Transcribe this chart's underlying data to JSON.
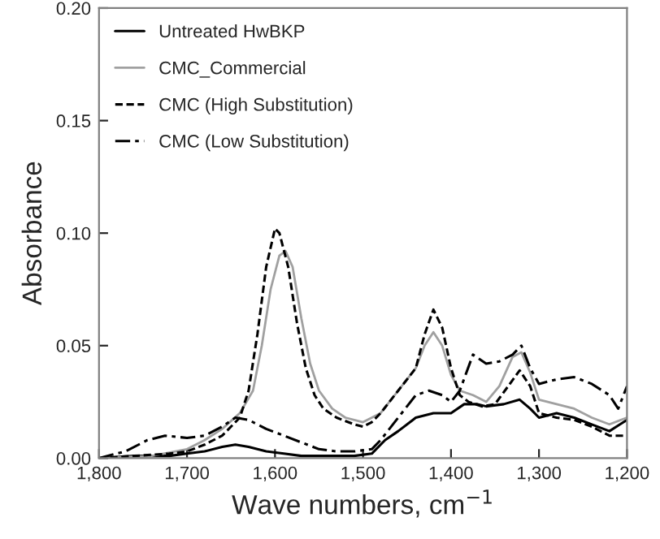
{
  "chart_data": {
    "type": "line",
    "xlabel": "Wave numbers, cm$^{−1}$",
    "ylabel": "Absorbance",
    "xlim": [
      1800,
      1200
    ],
    "ylim": [
      0,
      0.2
    ],
    "xticks": [
      {
        "value": 1800,
        "label": "1,800"
      },
      {
        "value": 1700,
        "label": "1,700"
      },
      {
        "value": 1600,
        "label": "1,600"
      },
      {
        "value": 1500,
        "label": "1,500"
      },
      {
        "value": 1400,
        "label": "1,400"
      },
      {
        "value": 1300,
        "label": "1,300"
      },
      {
        "value": 1200,
        "label": "1,200"
      }
    ],
    "yticks": [
      {
        "value": 0,
        "label": "0.00"
      },
      {
        "value": 0.05,
        "label": "0.05"
      },
      {
        "value": 0.1,
        "label": "0.10"
      },
      {
        "value": 0.15,
        "label": "0.15"
      },
      {
        "value": 0.2,
        "label": "0.20"
      }
    ],
    "grid": false,
    "legend": "top left",
    "marker": "none",
    "series": [
      {
        "name": "Untreated HwBKP",
        "color": "#000000",
        "line_style": "solid",
        "x": [
          1800,
          1760,
          1720,
          1700,
          1680,
          1660,
          1645,
          1630,
          1610,
          1590,
          1570,
          1550,
          1530,
          1510,
          1490,
          1475,
          1460,
          1440,
          1420,
          1400,
          1385,
          1370,
          1360,
          1340,
          1322,
          1310,
          1300,
          1280,
          1260,
          1240,
          1220,
          1200
        ],
        "values": [
          0.0,
          0.001,
          0.001,
          0.002,
          0.003,
          0.005,
          0.006,
          0.005,
          0.003,
          0.002,
          0.001,
          0.001,
          0.001,
          0.001,
          0.002,
          0.008,
          0.012,
          0.018,
          0.02,
          0.02,
          0.024,
          0.024,
          0.023,
          0.024,
          0.026,
          0.022,
          0.018,
          0.02,
          0.018,
          0.015,
          0.012,
          0.017
        ]
      },
      {
        "name": "CMC_Commercial",
        "color": "#a0a0a0",
        "line_style": "solid",
        "x": [
          1800,
          1740,
          1700,
          1680,
          1660,
          1640,
          1625,
          1615,
          1605,
          1595,
          1588,
          1580,
          1570,
          1560,
          1550,
          1535,
          1520,
          1500,
          1480,
          1460,
          1440,
          1430,
          1420,
          1410,
          1400,
          1390,
          1375,
          1360,
          1345,
          1330,
          1320,
          1310,
          1300,
          1280,
          1260,
          1240,
          1220,
          1200
        ],
        "values": [
          0.0,
          0.001,
          0.004,
          0.008,
          0.013,
          0.02,
          0.03,
          0.05,
          0.075,
          0.09,
          0.092,
          0.085,
          0.062,
          0.042,
          0.03,
          0.022,
          0.018,
          0.016,
          0.02,
          0.03,
          0.04,
          0.05,
          0.056,
          0.05,
          0.037,
          0.03,
          0.028,
          0.025,
          0.032,
          0.045,
          0.047,
          0.038,
          0.026,
          0.024,
          0.022,
          0.018,
          0.015,
          0.018
        ]
      },
      {
        "name": "CMC (High Substitution)",
        "color": "#000000",
        "line_style": "dashed",
        "x": [
          1800,
          1760,
          1720,
          1700,
          1680,
          1660,
          1640,
          1630,
          1620,
          1610,
          1600,
          1595,
          1585,
          1575,
          1565,
          1555,
          1545,
          1530,
          1510,
          1500,
          1490,
          1480,
          1460,
          1440,
          1430,
          1420,
          1410,
          1400,
          1390,
          1380,
          1365,
          1350,
          1335,
          1322,
          1310,
          1300,
          1280,
          1260,
          1240,
          1220,
          1200
        ],
        "values": [
          0.0,
          0.001,
          0.002,
          0.003,
          0.006,
          0.01,
          0.018,
          0.03,
          0.055,
          0.085,
          0.102,
          0.1,
          0.085,
          0.06,
          0.04,
          0.028,
          0.022,
          0.018,
          0.015,
          0.014,
          0.016,
          0.02,
          0.03,
          0.04,
          0.055,
          0.066,
          0.058,
          0.04,
          0.028,
          0.025,
          0.023,
          0.024,
          0.032,
          0.039,
          0.032,
          0.02,
          0.018,
          0.017,
          0.014,
          0.01,
          0.01
        ]
      },
      {
        "name": "CMC (Low Substitution)",
        "color": "#000000",
        "line_style": "dashdot",
        "x": [
          1800,
          1770,
          1745,
          1725,
          1700,
          1680,
          1660,
          1645,
          1630,
          1610,
          1590,
          1570,
          1550,
          1530,
          1510,
          1490,
          1480,
          1460,
          1440,
          1425,
          1410,
          1400,
          1390,
          1375,
          1360,
          1345,
          1330,
          1320,
          1310,
          1300,
          1280,
          1260,
          1240,
          1220,
          1210,
          1200
        ],
        "values": [
          0.0,
          0.003,
          0.008,
          0.01,
          0.009,
          0.01,
          0.014,
          0.018,
          0.017,
          0.013,
          0.01,
          0.007,
          0.004,
          0.003,
          0.003,
          0.004,
          0.008,
          0.018,
          0.028,
          0.03,
          0.028,
          0.025,
          0.03,
          0.046,
          0.042,
          0.043,
          0.046,
          0.05,
          0.04,
          0.033,
          0.035,
          0.036,
          0.033,
          0.028,
          0.022,
          0.032
        ]
      }
    ]
  }
}
